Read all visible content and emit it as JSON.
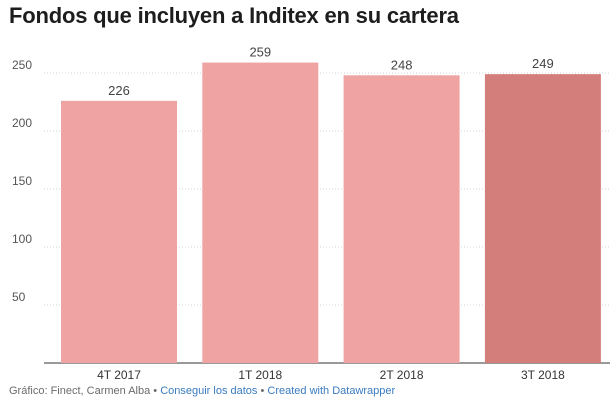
{
  "chart_data": {
    "type": "bar",
    "title": "Fondos que incluyen a Inditex en su cartera",
    "categories": [
      "4T 2017",
      "1T 2018",
      "2T 2018",
      "3T 2018"
    ],
    "values": [
      226,
      259,
      248,
      249
    ],
    "value_labels": [
      "226",
      "259",
      "248",
      "249"
    ],
    "ylim": [
      0,
      260
    ],
    "yticks": [
      50,
      100,
      150,
      200,
      250
    ],
    "ytick_labels": [
      "50",
      "100",
      "150",
      "200",
      "250"
    ],
    "bar_colors": [
      "#f0a3a3",
      "#f0a3a3",
      "#f0a3a3",
      "#d47e7b"
    ],
    "xlabel": "",
    "ylabel": "",
    "grid": true
  },
  "footer": {
    "credit": "Gráfico: Finect, Carmen Alba",
    "sep1": " • ",
    "get_data": "Conseguir los datos",
    "sep2": " • ",
    "created_with": "Created with Datawrapper"
  }
}
